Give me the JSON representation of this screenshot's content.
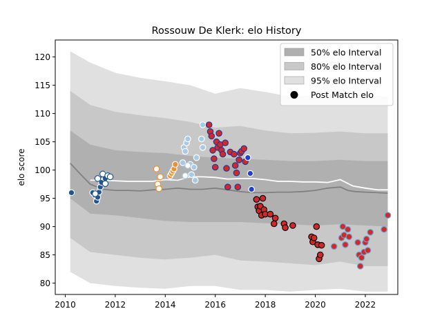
{
  "chart_data": {
    "type": "scatter",
    "title": "Rossouw De Klerk: elo History",
    "xlabel": "",
    "ylabel": "elo score",
    "xlim": [
      2009.6,
      2023.3
    ],
    "ylim": [
      78,
      123
    ],
    "xticks": [
      2010,
      2012,
      2014,
      2016,
      2018,
      2020,
      2022
    ],
    "yticks": [
      80,
      85,
      90,
      95,
      100,
      105,
      110,
      115,
      120
    ],
    "grid": false,
    "legend_position": "top-right",
    "legend": [
      {
        "label": "50% elo Interval",
        "kind": "band",
        "color": "#b0b0b0"
      },
      {
        "label": "80% elo Interval",
        "kind": "band",
        "color": "#c8c8c8"
      },
      {
        "label": "95% elo Interval",
        "kind": "band",
        "color": "#e0e0e0"
      },
      {
        "label": "Post Match elo",
        "kind": "marker",
        "color": "#000000"
      }
    ],
    "bands": {
      "x": [
        2010.2,
        2011.0,
        2012.0,
        2013.0,
        2014.0,
        2015.0,
        2016.0,
        2017.0,
        2018.0,
        2019.0,
        2020.0,
        2021.0,
        2022.0,
        2022.9
      ],
      "p95_upper": [
        121.0,
        119.0,
        117.2,
        116.3,
        115.7,
        115.0,
        113.5,
        114.5,
        113.8,
        113.0,
        113.2,
        113.5,
        113.3,
        113.0
      ],
      "p80_upper": [
        114.0,
        111.5,
        110.3,
        109.7,
        109.2,
        108.5,
        107.5,
        107.8,
        107.0,
        106.5,
        106.6,
        106.8,
        106.5,
        106.5
      ],
      "p50_upper": [
        107.0,
        104.5,
        103.5,
        103.2,
        103.0,
        102.5,
        102.2,
        102.0,
        101.8,
        101.6,
        101.6,
        101.8,
        101.6,
        101.6
      ],
      "p50_lower": [
        95.0,
        92.3,
        92.0,
        91.5,
        91.0,
        90.8,
        90.8,
        90.8,
        90.6,
        90.4,
        90.2,
        90.4,
        90.2,
        90.0
      ],
      "p80_lower": [
        88.0,
        85.5,
        85.0,
        84.5,
        84.2,
        84.5,
        85.0,
        84.0,
        83.8,
        83.5,
        83.2,
        83.8,
        83.0,
        83.0
      ],
      "p95_lower": [
        82.0,
        80.0,
        79.5,
        79.2,
        79.0,
        79.5,
        79.5,
        78.8,
        78.8,
        78.5,
        78.8,
        79.0,
        78.5,
        78.5
      ]
    },
    "series": [
      {
        "kind": "line",
        "color": "#808080",
        "x": [
          2010.2,
          2010.6,
          2011.0,
          2011.5,
          2012.0,
          2012.5,
          2013.0,
          2013.5,
          2014.0,
          2014.5,
          2015.0,
          2015.5,
          2016.0,
          2016.5,
          2017.0,
          2017.5,
          2018.0,
          2018.5,
          2019.0,
          2019.5,
          2020.0,
          2020.5,
          2021.0,
          2021.3,
          2021.6,
          2022.0,
          2022.5,
          2022.9
        ],
        "y": [
          101.2,
          99.3,
          97.5,
          96.6,
          96.4,
          96.4,
          96.3,
          96.5,
          96.6,
          96.8,
          96.6,
          96.6,
          96.8,
          96.5,
          96.2,
          96.0,
          96.0,
          96.1,
          96.1,
          96.2,
          96.4,
          96.8,
          97.0,
          96.4,
          96.2,
          96.1,
          96.0,
          95.9
        ]
      },
      {
        "kind": "line",
        "color": "#ffffff",
        "x": [
          2011.0,
          2011.5,
          2012.0,
          2012.5,
          2013.0,
          2013.5,
          2014.0,
          2014.5,
          2015.0,
          2015.5,
          2016.0,
          2016.5,
          2017.0,
          2017.5,
          2018.0,
          2018.5,
          2019.0,
          2019.5,
          2020.0,
          2020.5,
          2021.0,
          2021.5,
          2022.0,
          2022.5,
          2022.9
        ],
        "y": [
          98.2,
          98.2,
          98.1,
          98.0,
          98.0,
          98.0,
          98.3,
          98.2,
          98.8,
          98.8,
          98.7,
          98.4,
          98.5,
          98.5,
          98.3,
          98.0,
          98.0,
          97.9,
          97.9,
          97.8,
          98.3,
          97.2,
          96.8,
          96.5,
          96.5
        ]
      },
      {
        "kind": "scatter",
        "fill": "#1f5591",
        "edge": "#ffffff",
        "points": [
          [
            2010.25,
            96.0
          ],
          [
            2011.1,
            96.0
          ],
          [
            2011.2,
            95.5
          ],
          [
            2011.25,
            94.5
          ],
          [
            2011.3,
            95.2
          ],
          [
            2011.35,
            96.1
          ],
          [
            2011.4,
            97.0
          ],
          [
            2011.45,
            97.8
          ],
          [
            2011.5,
            99.0
          ],
          [
            2011.55,
            99.2
          ],
          [
            2011.6,
            98.5
          ]
        ]
      },
      {
        "kind": "scatter",
        "fill": "#ffffff",
        "edge": "#1f5591",
        "points": [
          [
            2011.2,
            95.8
          ],
          [
            2011.3,
            98.5
          ],
          [
            2011.5,
            99.3
          ],
          [
            2011.6,
            97.6
          ],
          [
            2011.7,
            99.0
          ],
          [
            2011.8,
            98.8
          ]
        ]
      },
      {
        "kind": "scatter",
        "fill": "#f28e2b",
        "edge": "#ffffff",
        "points": [
          [
            2014.2,
            99.0
          ],
          [
            2014.25,
            99.4
          ],
          [
            2014.3,
            99.8
          ],
          [
            2014.35,
            100.2
          ],
          [
            2014.4,
            101.0
          ]
        ]
      },
      {
        "kind": "scatter",
        "fill": "#ffffff",
        "edge": "#f28e2b",
        "points": [
          [
            2013.65,
            100.2
          ],
          [
            2013.7,
            97.5
          ],
          [
            2013.75,
            96.7
          ],
          [
            2013.8,
            98.8
          ]
        ]
      },
      {
        "kind": "scatter",
        "fill": "#a6cae8",
        "edge": "#ffffff",
        "points": [
          [
            2014.7,
            101.3
          ],
          [
            2014.75,
            104.0
          ],
          [
            2014.8,
            103.3
          ],
          [
            2014.85,
            104.8
          ],
          [
            2014.9,
            105.5
          ],
          [
            2015.0,
            101.0
          ],
          [
            2015.05,
            99.2
          ],
          [
            2015.15,
            100.5
          ],
          [
            2015.2,
            98.2
          ],
          [
            2015.25,
            102.2
          ],
          [
            2015.45,
            105.5
          ],
          [
            2015.5,
            108.0
          ],
          [
            2015.5,
            104.0
          ]
        ]
      },
      {
        "kind": "scatter",
        "fill": "#ffffff",
        "edge": "#a6cae8",
        "points": [
          [
            2014.8,
            99.0
          ],
          [
            2014.9,
            100.8
          ]
        ]
      },
      {
        "kind": "scatter",
        "fill": "#d62728",
        "edge": "#1f3a93",
        "points": [
          [
            2015.75,
            108.0
          ],
          [
            2015.8,
            106.8
          ],
          [
            2015.85,
            106.0
          ],
          [
            2015.9,
            103.5
          ],
          [
            2015.95,
            102.0
          ],
          [
            2016.0,
            100.5
          ],
          [
            2016.05,
            105.0
          ],
          [
            2016.1,
            104.0
          ],
          [
            2016.15,
            106.5
          ],
          [
            2016.2,
            104.5
          ],
          [
            2016.25,
            103.5
          ],
          [
            2016.3,
            102.8
          ],
          [
            2016.4,
            104.8
          ],
          [
            2016.45,
            100.3
          ],
          [
            2016.5,
            97.0
          ],
          [
            2016.6,
            103.2
          ],
          [
            2016.75,
            102.8
          ],
          [
            2016.8,
            100.8
          ],
          [
            2016.85,
            99.5
          ],
          [
            2016.9,
            97.0
          ],
          [
            2016.95,
            101.8
          ],
          [
            2017.0,
            103.0
          ],
          [
            2017.05,
            103.3
          ],
          [
            2017.15,
            103.8
          ],
          [
            2017.2,
            101.5
          ]
        ]
      },
      {
        "kind": "scatter",
        "fill": "#1f3fd6",
        "edge": "#ffffff",
        "points": [
          [
            2017.3,
            102.2
          ],
          [
            2017.4,
            99.4
          ],
          [
            2017.45,
            96.6
          ]
        ]
      },
      {
        "kind": "scatter",
        "fill": "#d62728",
        "edge": "#000000",
        "points": [
          [
            2017.65,
            94.8
          ],
          [
            2017.7,
            93.5
          ],
          [
            2017.75,
            92.8
          ],
          [
            2017.8,
            93.6
          ],
          [
            2017.85,
            92.0
          ],
          [
            2017.9,
            95.0
          ],
          [
            2017.95,
            93.0
          ],
          [
            2018.0,
            92.2
          ],
          [
            2018.2,
            92.2
          ],
          [
            2018.35,
            90.5
          ],
          [
            2018.4,
            91.5
          ],
          [
            2018.75,
            90.5
          ],
          [
            2018.8,
            89.8
          ],
          [
            2019.1,
            90.2
          ],
          [
            2019.85,
            88.2
          ],
          [
            2019.9,
            87.3
          ],
          [
            2019.95,
            88.0
          ],
          [
            2020.05,
            90.0
          ],
          [
            2020.1,
            86.8
          ],
          [
            2020.15,
            84.3
          ],
          [
            2020.2,
            85.0
          ],
          [
            2020.25,
            86.7
          ]
        ]
      },
      {
        "kind": "scatter",
        "fill": "#d62728",
        "edge": "#5fa8d3",
        "points": [
          [
            2020.75,
            86.5
          ],
          [
            2021.05,
            88.0
          ],
          [
            2021.1,
            90.0
          ],
          [
            2021.15,
            88.5
          ],
          [
            2021.2,
            86.8
          ],
          [
            2021.3,
            89.5
          ],
          [
            2021.35,
            88.2
          ],
          [
            2021.7,
            87.2
          ],
          [
            2021.75,
            85.0
          ],
          [
            2021.8,
            83.0
          ],
          [
            2021.85,
            84.5
          ],
          [
            2021.95,
            85.5
          ],
          [
            2022.0,
            87.2
          ],
          [
            2022.05,
            87.8
          ],
          [
            2022.1,
            85.8
          ],
          [
            2022.2,
            89.0
          ],
          [
            2022.75,
            89.5
          ],
          [
            2022.9,
            92.0
          ]
        ]
      }
    ]
  }
}
